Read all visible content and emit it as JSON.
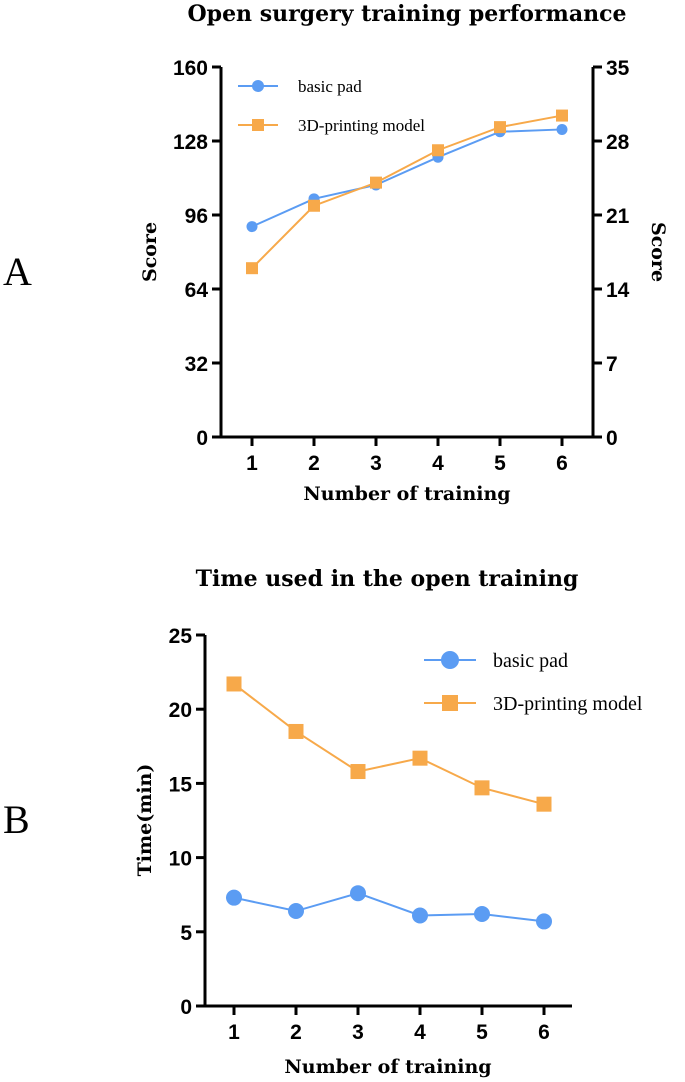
{
  "panels": {
    "a": "A",
    "b": "B"
  },
  "colors": {
    "basic": "#5b9cf3",
    "printing": "#f7a94a"
  },
  "chart_data": [
    {
      "type": "line",
      "title": "Open surgery training performance",
      "xlabel": "Number of training",
      "ylabel": "Score",
      "ylabel_right": "Score",
      "categories": [
        "1",
        "2",
        "3",
        "4",
        "5",
        "6"
      ],
      "ylim": [
        0,
        160
      ],
      "yticks": [
        0,
        32,
        64,
        96,
        128,
        160
      ],
      "ylim_right": [
        0,
        35
      ],
      "yticks_right": [
        0,
        7,
        14,
        21,
        28,
        35
      ],
      "legend_position": "top-left",
      "grid": false,
      "series": [
        {
          "name": "basic pad",
          "marker": "circle",
          "axis": "left",
          "values": [
            91,
            103,
            109,
            121,
            132,
            133
          ]
        },
        {
          "name": "3D-printing model",
          "marker": "square",
          "axis": "left",
          "values": [
            73,
            100,
            110,
            124,
            134,
            139
          ]
        }
      ]
    },
    {
      "type": "line",
      "title": "Time used in the open training",
      "xlabel": "Number of training",
      "ylabel": "Time(min)",
      "categories": [
        "1",
        "2",
        "3",
        "4",
        "5",
        "6"
      ],
      "ylim": [
        0,
        25
      ],
      "yticks": [
        0,
        5,
        10,
        15,
        20,
        25
      ],
      "legend_position": "top-right",
      "grid": false,
      "series": [
        {
          "name": "basic pad",
          "marker": "circle",
          "values": [
            7.3,
            6.4,
            7.6,
            6.1,
            6.2,
            5.7
          ]
        },
        {
          "name": "3D-printing model",
          "marker": "square",
          "values": [
            21.7,
            18.5,
            15.8,
            16.7,
            14.7,
            13.6
          ]
        }
      ]
    }
  ]
}
